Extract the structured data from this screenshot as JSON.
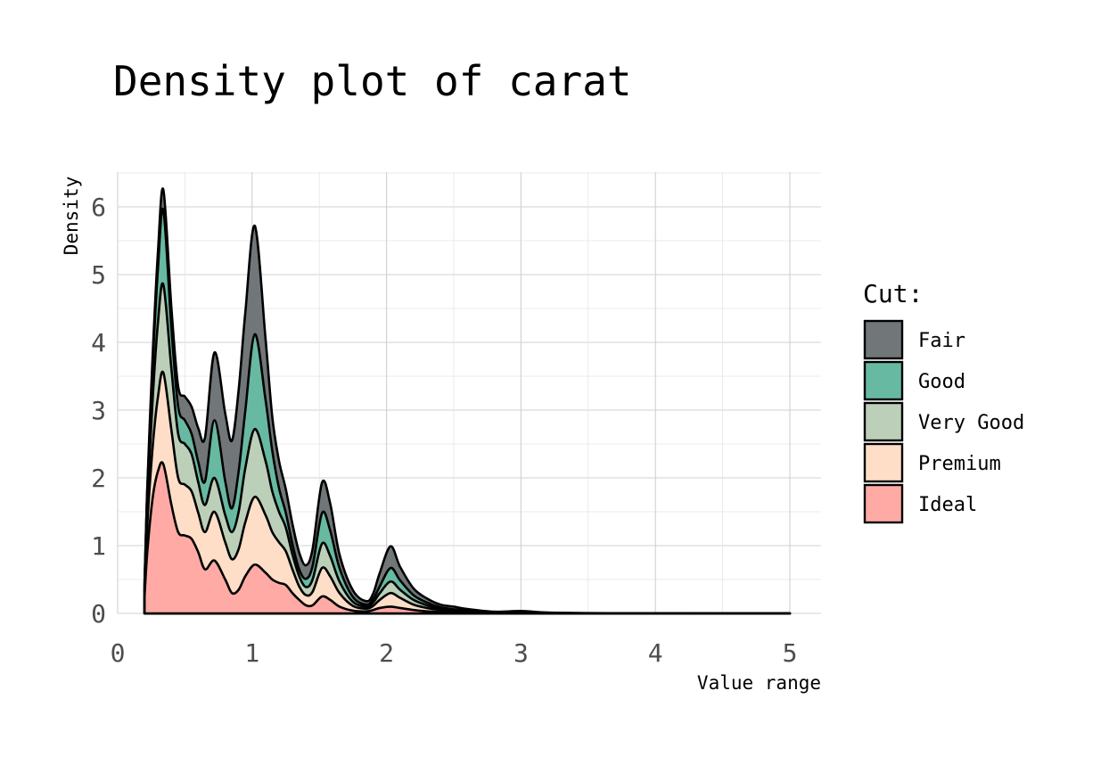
{
  "chart_data": {
    "type": "area",
    "stacked": true,
    "title": "Density plot of carat",
    "xlabel": "Value range",
    "ylabel": "Density",
    "xlim": [
      0,
      5
    ],
    "ylim": [
      0,
      6.5
    ],
    "x_ticks": [
      "0",
      "1",
      "2",
      "3",
      "4",
      "5"
    ],
    "y_ticks": [
      "0",
      "1",
      "2",
      "3",
      "4",
      "5",
      "6"
    ],
    "grid": true,
    "legend": {
      "title": "Cut:",
      "position": "right"
    },
    "x": [
      0.2,
      0.22,
      0.26,
      0.3,
      0.34,
      0.4,
      0.45,
      0.5,
      0.55,
      0.6,
      0.65,
      0.72,
      0.8,
      0.85,
      0.9,
      0.95,
      1.02,
      1.1,
      1.15,
      1.2,
      1.25,
      1.3,
      1.35,
      1.4,
      1.45,
      1.52,
      1.58,
      1.65,
      1.75,
      1.85,
      1.9,
      1.95,
      2.03,
      2.1,
      2.2,
      2.3,
      2.4,
      2.5,
      2.6,
      2.8,
      3.0,
      3.2,
      3.5,
      4.0,
      4.5,
      5.0
    ],
    "series": [
      {
        "name": "Ideal",
        "color": "#ffaaa5",
        "values": [
          0.25,
          0.9,
          1.7,
          2.1,
          2.2,
          1.6,
          1.2,
          1.15,
          1.1,
          0.9,
          0.65,
          0.78,
          0.5,
          0.3,
          0.35,
          0.55,
          0.72,
          0.6,
          0.5,
          0.45,
          0.42,
          0.3,
          0.2,
          0.12,
          0.12,
          0.25,
          0.2,
          0.1,
          0.04,
          0.03,
          0.05,
          0.08,
          0.1,
          0.08,
          0.05,
          0.03,
          0.02,
          0.01,
          0.01,
          0.005,
          0.002,
          0.001,
          0.0,
          0.0,
          0.0,
          0.0
        ]
      },
      {
        "name": "Premium",
        "color": "#ffdec8",
        "values": [
          0.1,
          0.4,
          0.75,
          1.1,
          1.35,
          1.1,
          0.8,
          0.75,
          0.7,
          0.58,
          0.55,
          0.72,
          0.55,
          0.5,
          0.6,
          0.8,
          1.0,
          0.85,
          0.7,
          0.6,
          0.5,
          0.35,
          0.2,
          0.15,
          0.2,
          0.42,
          0.35,
          0.2,
          0.07,
          0.04,
          0.06,
          0.12,
          0.2,
          0.15,
          0.08,
          0.05,
          0.03,
          0.02,
          0.015,
          0.005,
          0.005,
          0.002,
          0.0,
          0.0,
          0.0,
          0.0
        ]
      },
      {
        "name": "Very Good",
        "color": "#bccfb8",
        "values": [
          0.05,
          0.3,
          0.7,
          1.1,
          1.3,
          0.9,
          0.65,
          0.6,
          0.55,
          0.45,
          0.4,
          0.5,
          0.4,
          0.4,
          0.55,
          0.8,
          1.0,
          0.8,
          0.6,
          0.45,
          0.35,
          0.22,
          0.15,
          0.12,
          0.18,
          0.36,
          0.3,
          0.17,
          0.06,
          0.03,
          0.05,
          0.1,
          0.17,
          0.12,
          0.07,
          0.04,
          0.02,
          0.015,
          0.01,
          0.005,
          0.004,
          0.002,
          0.001,
          0.0,
          0.0,
          0.0
        ]
      },
      {
        "name": "Good",
        "color": "#68b9a2",
        "values": [
          0.05,
          0.2,
          0.5,
          0.8,
          1.1,
          0.6,
          0.4,
          0.35,
          0.3,
          0.3,
          0.35,
          0.85,
          0.5,
          0.35,
          0.6,
          0.85,
          1.4,
          0.9,
          0.6,
          0.35,
          0.22,
          0.15,
          0.1,
          0.12,
          0.2,
          0.45,
          0.38,
          0.2,
          0.07,
          0.03,
          0.05,
          0.1,
          0.2,
          0.14,
          0.07,
          0.04,
          0.02,
          0.015,
          0.01,
          0.005,
          0.004,
          0.002,
          0.001,
          0.0,
          0.0,
          0.0
        ]
      },
      {
        "name": "Fair",
        "color": "#717779",
        "values": [
          0.02,
          0.05,
          0.15,
          0.25,
          0.3,
          0.3,
          0.3,
          0.35,
          0.4,
          0.5,
          0.65,
          1.0,
          1.0,
          1.0,
          1.2,
          1.45,
          1.6,
          0.9,
          0.5,
          0.4,
          0.35,
          0.3,
          0.25,
          0.2,
          0.25,
          0.45,
          0.4,
          0.2,
          0.1,
          0.05,
          0.08,
          0.2,
          0.32,
          0.2,
          0.1,
          0.06,
          0.04,
          0.04,
          0.02,
          0.005,
          0.02,
          0.005,
          0.002,
          0.001,
          0.0,
          0.0
        ]
      }
    ]
  }
}
